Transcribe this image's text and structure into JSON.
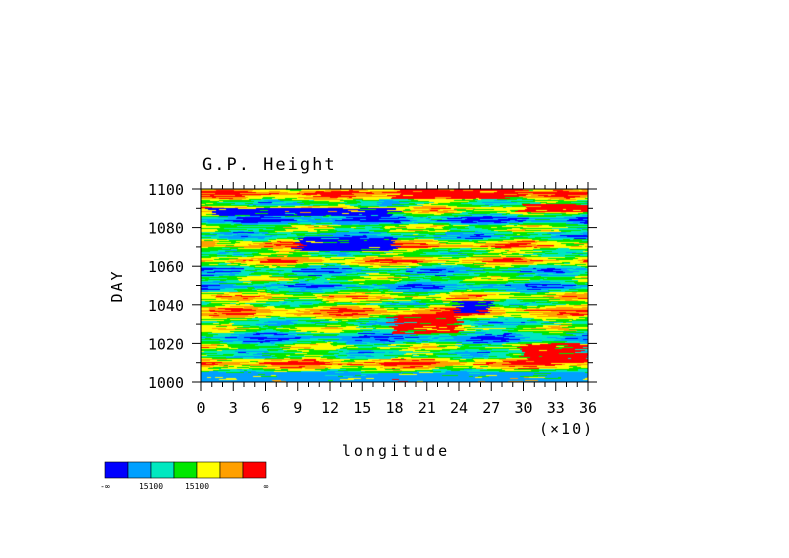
{
  "chart_data": {
    "type": "heatmap",
    "title": "G.P. Height",
    "xlabel": "longitude",
    "ylabel": "DAY",
    "x_scale_label": "(×10)",
    "xlim": [
      0,
      36
    ],
    "ylim": [
      1000,
      1100
    ],
    "x_ticks": [
      "0",
      "3",
      "6",
      "9",
      "12",
      "15",
      "18",
      "21",
      "24",
      "27",
      "30",
      "33",
      "36"
    ],
    "y_ticks": [
      "1000",
      "1020",
      "1040",
      "1060",
      "1080",
      "1100"
    ],
    "colorbar": {
      "colors": [
        "#0000ff",
        "#00a0ff",
        "#00e8c0",
        "#00e800",
        "#ffff00",
        "#ffa000",
        "#ff0000"
      ],
      "labels": [
        "-∞",
        "15100",
        "15100",
        "∞"
      ]
    },
    "features": [
      {
        "lon": [
          1,
          18
        ],
        "day": [
          1086,
          1090
        ],
        "level": 0
      },
      {
        "lon": [
          9,
          18
        ],
        "day": [
          1068,
          1075
        ],
        "level": 0
      },
      {
        "lon": [
          24,
          27
        ],
        "day": [
          1036,
          1042
        ],
        "level": 0
      },
      {
        "lon": [
          0,
          36
        ],
        "day": [
          1000,
          1005
        ],
        "level": 1
      },
      {
        "lon": [
          18,
          24
        ],
        "day": [
          1025,
          1035
        ],
        "level": 6
      },
      {
        "lon": [
          18,
          30
        ],
        "day": [
          1095,
          1100
        ],
        "level": 6
      },
      {
        "lon": [
          30,
          36
        ],
        "day": [
          1088,
          1092
        ],
        "level": 6
      },
      {
        "lon": [
          30,
          36
        ],
        "day": [
          1010,
          1020
        ],
        "level": 6
      }
    ]
  }
}
